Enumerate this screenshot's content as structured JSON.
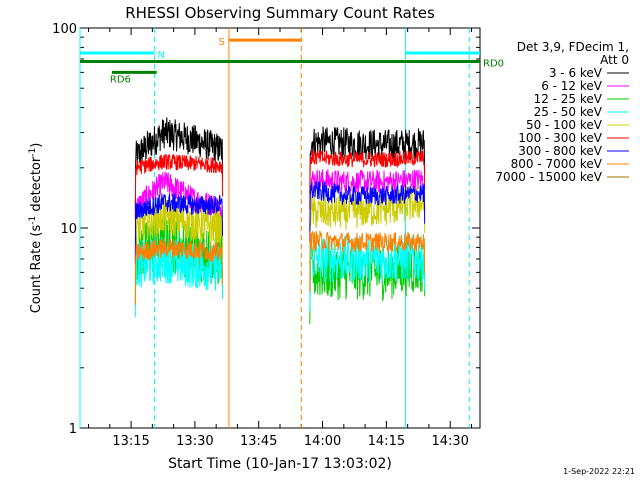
{
  "chart_data": {
    "type": "line",
    "title": "RHESSI Observing Summary Count Rates",
    "xlabel": "Start Time (10-Jan-17 13:03:02)",
    "ylabel_main": "Count Rate (s",
    "ylabel_exp1": "-1",
    "ylabel_mid": " detector",
    "ylabel_exp2": "-1",
    "ylabel_end": ")",
    "yscale": "log",
    "ylim": [
      1,
      100
    ],
    "xlim_minutes": [
      3.0,
      97.0
    ],
    "x_ticks": [
      {
        "minute": 15,
        "label": "13:15"
      },
      {
        "minute": 30,
        "label": "13:30"
      },
      {
        "minute": 45,
        "label": "13:45"
      },
      {
        "minute": 60,
        "label": "14:00"
      },
      {
        "minute": 75,
        "label": "14:15"
      },
      {
        "minute": 90,
        "label": "14:30"
      }
    ],
    "y_ticks": [
      {
        "value": 1,
        "label": "1"
      },
      {
        "value": 10,
        "label": "10"
      },
      {
        "value": 100,
        "label": "100"
      }
    ],
    "legend_header": [
      "Det 3,9, FDecim 1,",
      "Att 0"
    ],
    "series": [
      {
        "name": "3 - 6 keV",
        "color": "#000000",
        "seg1": [
          22.5,
          30.0,
          27.5,
          24.5
        ],
        "seg2": [
          27.0,
          26.5,
          26.0,
          26.5
        ],
        "noise": 0.08
      },
      {
        "name": "6 - 12 keV",
        "color": "#ff00ff",
        "seg1": [
          12.5,
          17.0,
          14.0,
          12.5
        ],
        "seg2": [
          17.5,
          17.0,
          17.0,
          17.5
        ],
        "noise": 0.06
      },
      {
        "name": "12 - 25 keV",
        "color": "#00cc00",
        "seg1": [
          7.5,
          8.5,
          7.5,
          7.0
        ],
        "seg2": [
          6.0,
          6.0,
          6.0,
          6.5
        ],
        "noise": 0.14
      },
      {
        "name": "25 - 50 keV",
        "color": "#00ffff",
        "seg1": [
          6.5,
          7.0,
          6.5,
          6.3
        ],
        "seg2": [
          7.0,
          7.0,
          7.0,
          7.0
        ],
        "noise": 0.12
      },
      {
        "name": "50 - 100 keV",
        "color": "#cccc00",
        "seg1": [
          10.0,
          11.5,
          10.5,
          10.0
        ],
        "seg2": [
          12.0,
          12.0,
          12.5,
          13.5
        ],
        "noise": 0.09
      },
      {
        "name": "100 - 300 keV",
        "color": "#ff0000",
        "seg1": [
          20.0,
          21.5,
          21.0,
          20.5
        ],
        "seg2": [
          22.5,
          22.0,
          22.0,
          22.5
        ],
        "noise": 0.04
      },
      {
        "name": "300 - 800 keV",
        "color": "#0000ff",
        "seg1": [
          12.0,
          13.5,
          13.0,
          13.0
        ],
        "seg2": [
          15.5,
          14.5,
          14.5,
          15.0
        ],
        "noise": 0.05
      },
      {
        "name": "800 - 7000 keV",
        "color": "#ff8000",
        "seg1": [
          7.5,
          8.0,
          7.8,
          7.5
        ],
        "seg2": [
          8.7,
          8.5,
          8.5,
          8.5
        ],
        "noise": 0.05
      },
      {
        "name": "7000 - 15000 keV",
        "color": "#a07000",
        "seg1": [],
        "seg2": [],
        "noise": 0.0
      }
    ],
    "data_segments_minutes": [
      [
        16.0,
        36.5
      ],
      [
        57.0,
        84.0
      ]
    ],
    "flags": [
      {
        "label": "N",
        "color": "#00ffff",
        "y_value": 75,
        "ranges": [
          [
            3.0,
            20.5
          ],
          [
            79.5,
            97.0
          ]
        ]
      },
      {
        "label": "RD0",
        "color": "#008000",
        "y_value": 68,
        "ranges": [
          [
            3.0,
            97.0
          ]
        ]
      },
      {
        "label": "RD6",
        "color": "#008000",
        "y_value": 60,
        "ranges": [
          [
            10.5,
            21.0
          ]
        ]
      },
      {
        "label": "S",
        "color": "#ff8000",
        "y_value": 87,
        "ranges": [
          [
            38.0,
            55.0
          ]
        ]
      }
    ],
    "vlines": [
      {
        "minute": 3.0,
        "color": "#00ffff",
        "dashed": false
      },
      {
        "minute": 20.5,
        "color": "#00ffff",
        "dashed": true
      },
      {
        "minute": 38.0,
        "color": "#ff8000",
        "dashed": false
      },
      {
        "minute": 55.0,
        "color": "#ff8000",
        "dashed": true
      },
      {
        "minute": 79.5,
        "color": "#00ffff",
        "dashed": false
      },
      {
        "minute": 94.5,
        "color": "#00ffff",
        "dashed": true
      }
    ],
    "footer": "1-Sep-2022 22:21"
  }
}
